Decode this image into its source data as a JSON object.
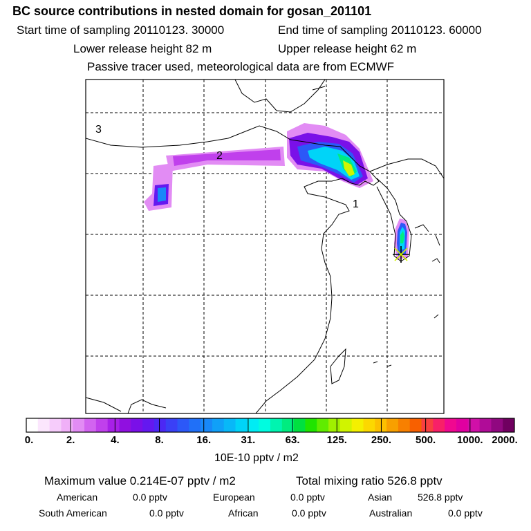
{
  "header": {
    "title": "BC  source contributions in nested domain for gosan_201101",
    "start": "Start time of sampling 20110123. 30000",
    "end": "End time of sampling 20110123. 60000",
    "lower": "Lower release height   82 m",
    "upper": "Upper release height   62 m",
    "tracer": "Passive tracer used, meteorological data are from ECMWF"
  },
  "map": {
    "region_labels": [
      "1",
      "2",
      "3"
    ],
    "receptor": "gosan-station-marker"
  },
  "colorbar": {
    "ticks": [
      "0.",
      "2.",
      "4.",
      "8.",
      "16.",
      "31.",
      "63.",
      "125.",
      "250.",
      "500.",
      "1000.",
      "2000."
    ],
    "unit": "10E-10 pptv / m2",
    "colors": [
      "#ffffff",
      "#fbe6fd",
      "#f6ccfb",
      "#f0b0f8",
      "#e28cf4",
      "#d264f0",
      "#c040ec",
      "#a820e8",
      "#9010e0",
      "#7a10e8",
      "#6418f0",
      "#4c28f4",
      "#3a40f6",
      "#2c58f8",
      "#2070f8",
      "#1888f8",
      "#10a0f8",
      "#08b8f8",
      "#00d4f8",
      "#00ecf4",
      "#00fce0",
      "#00f4b0",
      "#00ec80",
      "#00e040",
      "#20e400",
      "#60ec00",
      "#a0f000",
      "#d0f400",
      "#f4f000",
      "#fcd800",
      "#fcc000",
      "#f8a000",
      "#f88000",
      "#f86000",
      "#f84040",
      "#f82068",
      "#f00890",
      "#e000a0",
      "#d010a8",
      "#b00c98",
      "#900880",
      "#700060"
    ]
  },
  "summary": {
    "maximum": "Maximum value  0.214E-07 pptv / m2",
    "total": "Total mixing ratio     526.8 pptv",
    "rows": [
      [
        {
          "label": "American",
          "value": "0.0 pptv"
        },
        {
          "label": "European",
          "value": "0.0 pptv"
        },
        {
          "label": "Asian",
          "value": "526.8 pptv"
        }
      ],
      [
        {
          "label": "South American",
          "value": "0.0 pptv"
        },
        {
          "label": "African",
          "value": "0.0 pptv"
        },
        {
          "label": "Australian",
          "value": "0.0 pptv"
        }
      ]
    ]
  }
}
